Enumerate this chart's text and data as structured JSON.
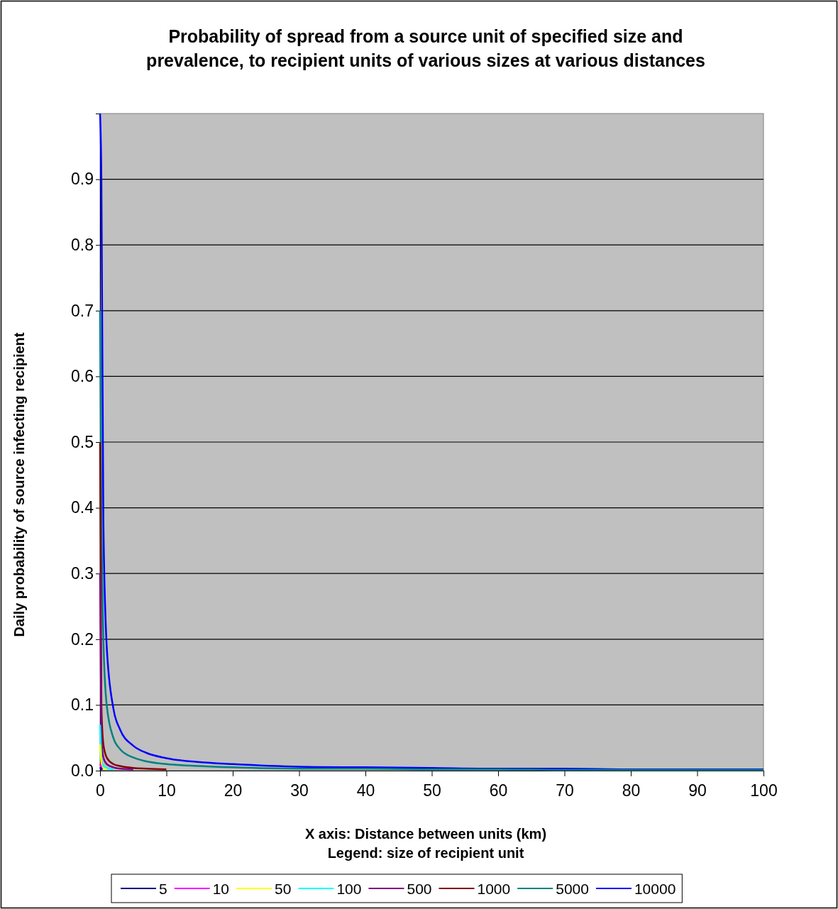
{
  "chart_data": {
    "type": "line",
    "title": "Probability of spread from a source unit of specified size and prevalence, to recipient units of various sizes at various distances",
    "xlabel": "X axis: Distance between units (km)",
    "legend_title": "Legend: size of recipient unit",
    "ylabel": "Daily probability of source infecting recipient",
    "x": [
      0,
      0.2,
      0.5,
      1,
      2,
      3,
      5,
      7,
      10,
      15,
      20,
      30,
      40,
      50,
      60,
      70,
      80,
      90,
      100
    ],
    "xlim": [
      0,
      100
    ],
    "xticks": [
      0,
      10,
      20,
      30,
      40,
      50,
      60,
      70,
      80,
      90,
      100
    ],
    "ylim": [
      0,
      1
    ],
    "yticks": [
      {
        "value": 0,
        "label": "0.0"
      },
      0.1,
      0.2,
      0.3,
      0.4,
      0.5,
      0.6,
      0.7,
      0.8,
      0.9
    ],
    "grid": "y",
    "legend": "bottom",
    "marker": "none",
    "line_style": "solid",
    "series": [
      {
        "name": "5",
        "color": "#000080",
        "x": [
          0,
          0.3
        ],
        "values": [
          0.005,
          0.001
        ]
      },
      {
        "name": "10",
        "color": "#ff00ff",
        "x": [
          0,
          0.3
        ],
        "values": [
          0.01,
          0.002
        ]
      },
      {
        "name": "50",
        "color": "#ffff00",
        "x": [
          0,
          0.3,
          1
        ],
        "values": [
          0.04,
          0.005,
          0.002
        ]
      },
      {
        "name": "100",
        "color": "#00ffff",
        "x": [
          0,
          0.3,
          1,
          2
        ],
        "values": [
          0.07,
          0.01,
          0.004,
          0.002
        ]
      },
      {
        "name": "500",
        "color": "#800080",
        "x": [
          0,
          0.2,
          0.5,
          1,
          2,
          3,
          5
        ],
        "values": [
          0.3,
          0.05,
          0.02,
          0.01,
          0.005,
          0.003,
          0.002
        ]
      },
      {
        "name": "1000",
        "color": "#800000",
        "x": [
          0,
          0.2,
          0.5,
          1,
          2,
          3,
          5,
          7,
          10
        ],
        "values": [
          0.5,
          0.1,
          0.04,
          0.02,
          0.01,
          0.007,
          0.004,
          0.003,
          0.002
        ]
      },
      {
        "name": "5000",
        "color": "#008080",
        "values": [
          0.7,
          0.4,
          0.2,
          0.1,
          0.05,
          0.033,
          0.02,
          0.014,
          0.01,
          0.007,
          0.005,
          0.003,
          0.003,
          0.002,
          0.002,
          0.001,
          0.001,
          0.001,
          0.001
        ]
      },
      {
        "name": "10000",
        "color": "#0000ff",
        "values": [
          1,
          0.9,
          0.38,
          0.19,
          0.095,
          0.063,
          0.038,
          0.027,
          0.019,
          0.013,
          0.01,
          0.006,
          0.005,
          0.004,
          0.003,
          0.003,
          0.002,
          0.002,
          0.002
        ]
      }
    ]
  }
}
